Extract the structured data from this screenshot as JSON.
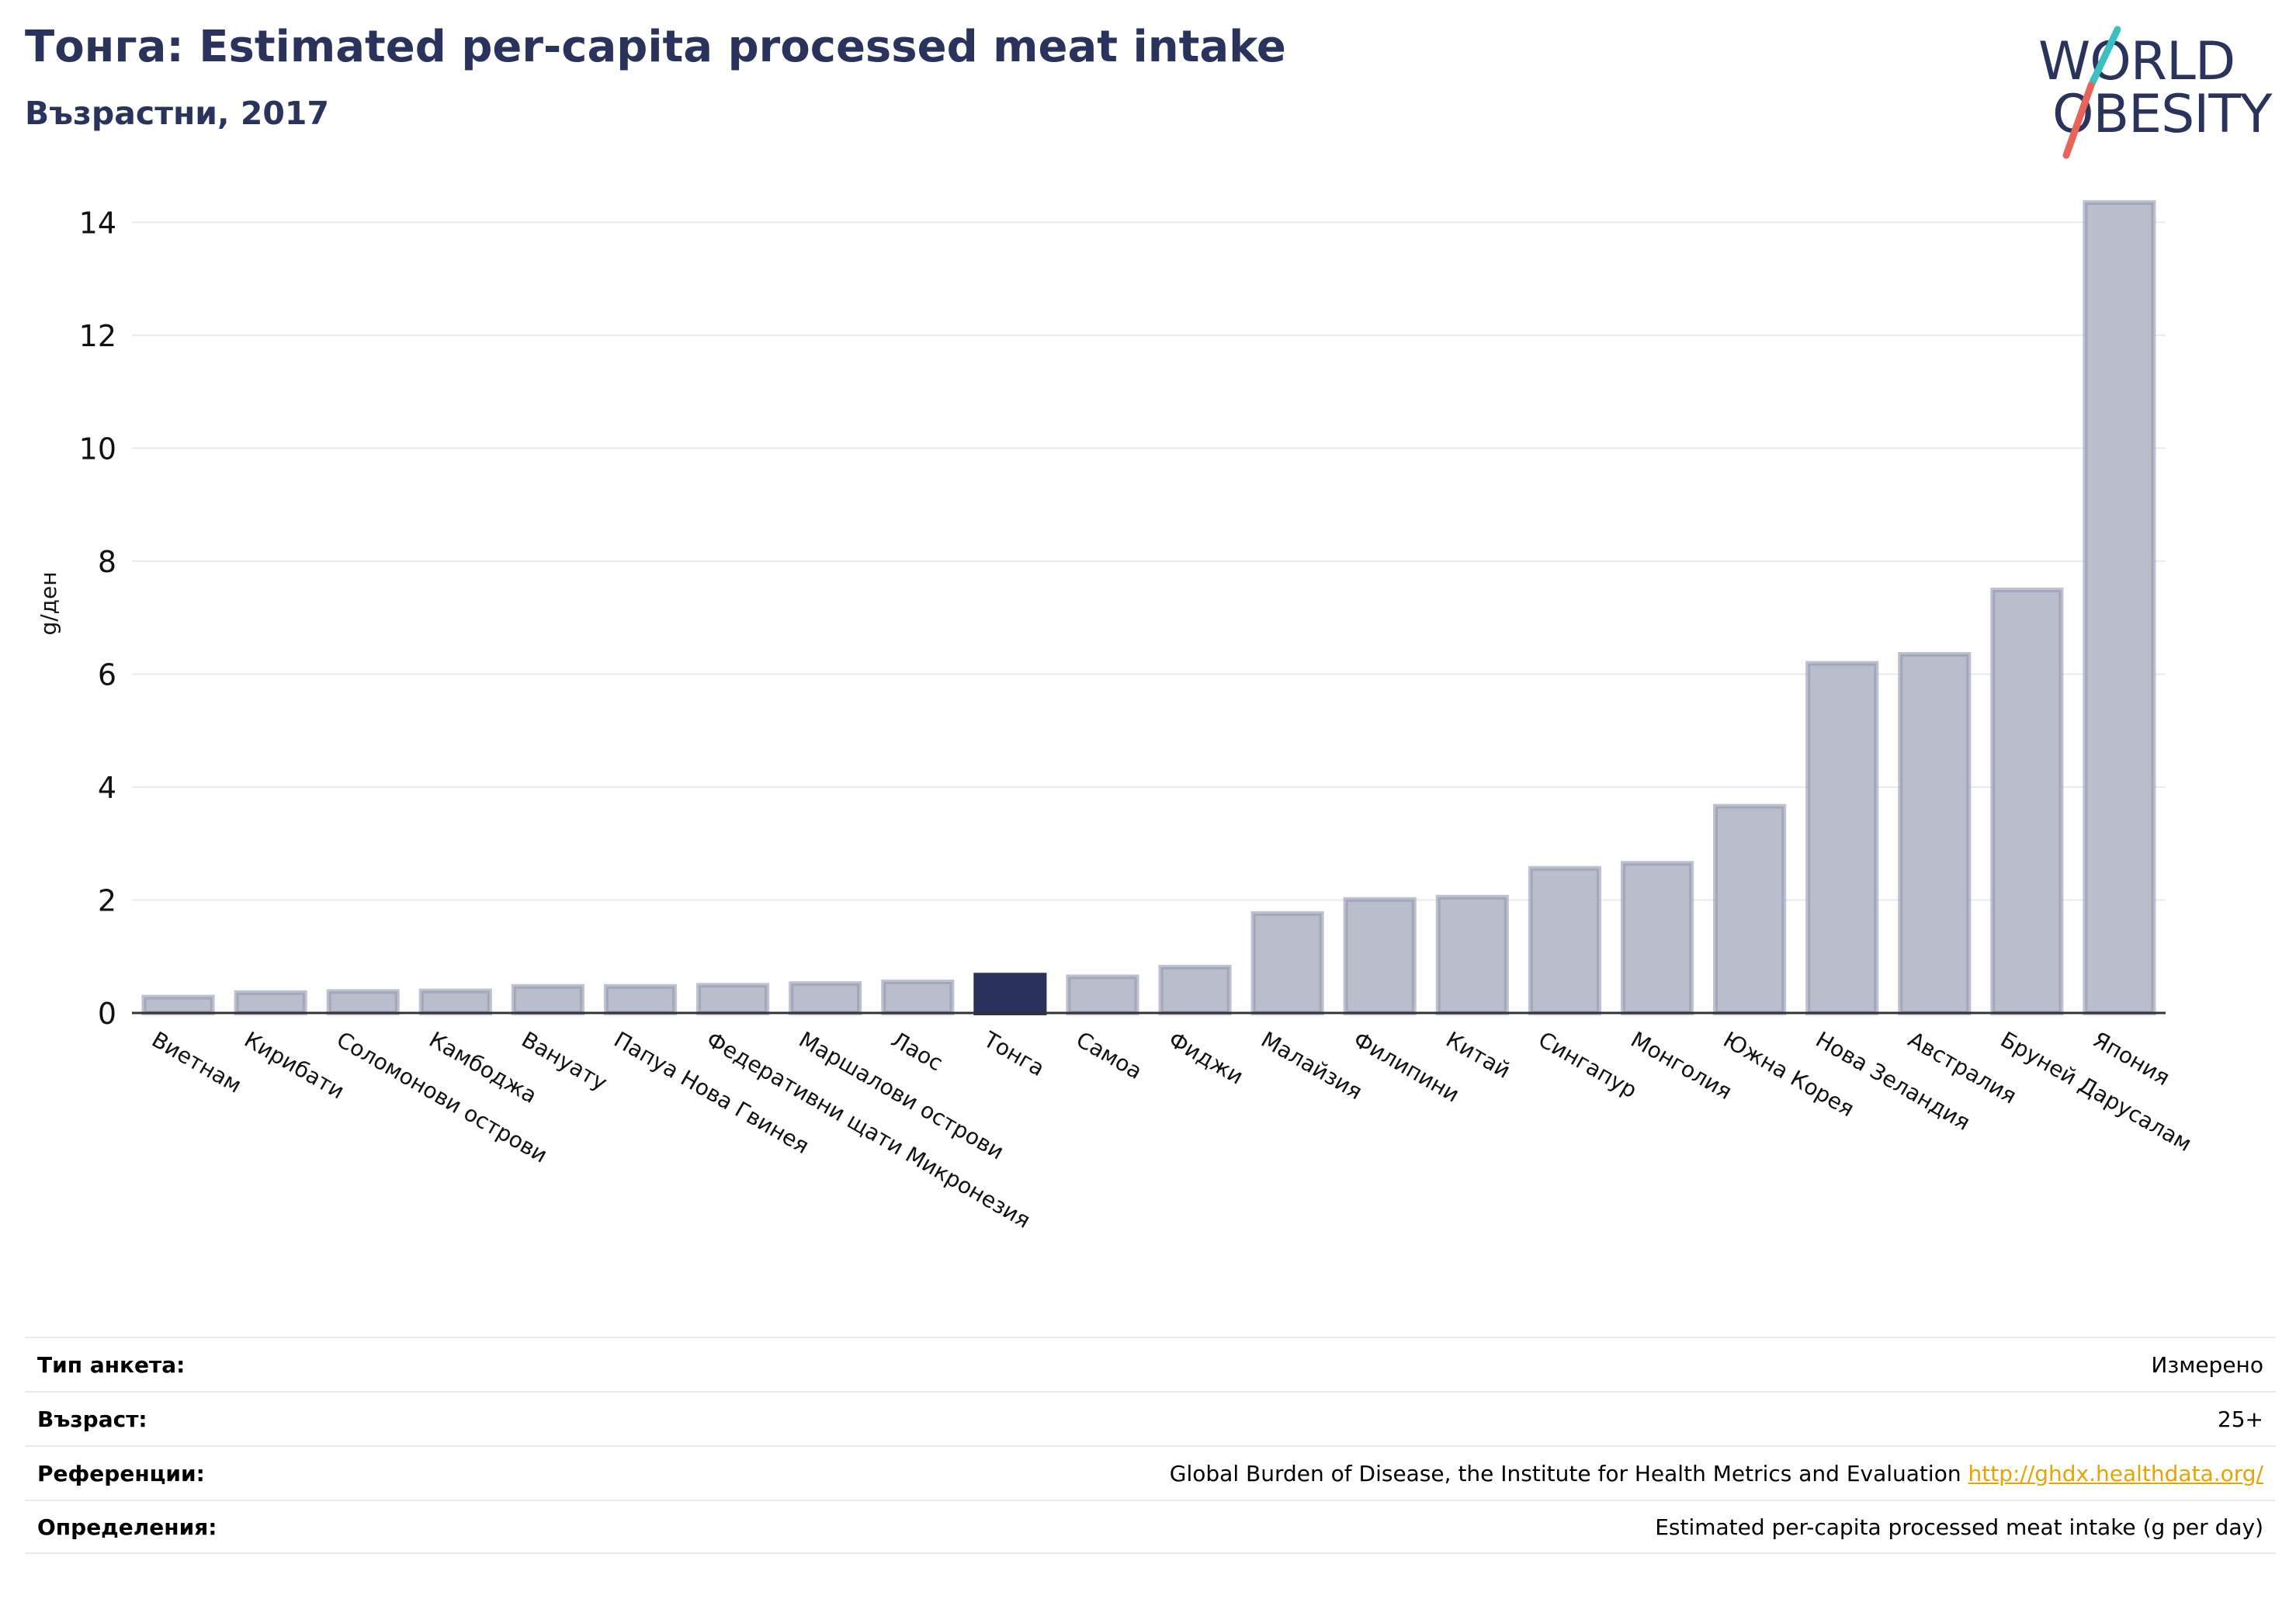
{
  "header": {
    "title": "Тонга: Estimated per-capita processed meat intake",
    "subtitle": "Възрастни, 2017"
  },
  "logo": {
    "line1": "WORLD",
    "line2": "OBESITY",
    "colors": {
      "text": "#29335c",
      "slash_top": "#3cbfbf",
      "slash_bottom": "#e8645a"
    }
  },
  "chart_data": {
    "type": "bar",
    "ylabel": "g/ден",
    "ylim": [
      0,
      14.5
    ],
    "yticks": [
      0,
      2,
      4,
      6,
      8,
      10,
      12,
      14
    ],
    "grid": true,
    "highlight": "Тонга",
    "colors": {
      "bar": "#babdcc",
      "bar_edge": "#9297b0",
      "highlight": "#29335c",
      "grid": "#e6ebf0",
      "axis": "#333333"
    },
    "categories": [
      "Виетнам",
      "Кирибати",
      "Соломонови острови",
      "Камбоджа",
      "Вануату",
      "Папуа Нова Гвинея",
      "Федеративни щати Микронезия",
      "Маршалови острови",
      "Лаос",
      "Тонга",
      "Самоа",
      "Фиджи",
      "Малайзия",
      "Филипини",
      "Китай",
      "Сингапур",
      "Монголия",
      "Южна Корея",
      "Нова Зеландия",
      "Австралия",
      "Бруней Дарусалам",
      "Япония"
    ],
    "values": [
      0.28,
      0.36,
      0.38,
      0.39,
      0.47,
      0.47,
      0.49,
      0.52,
      0.55,
      0.67,
      0.64,
      0.81,
      1.76,
      2.01,
      2.05,
      2.56,
      2.65,
      3.66,
      6.19,
      6.35,
      7.49,
      14.35
    ]
  },
  "footer": {
    "rows": [
      {
        "label": "Тип анкета:",
        "value": "Измерено"
      },
      {
        "label": "Възраст:",
        "value": "25+"
      },
      {
        "label": "Референции:",
        "value": "Global Burden of Disease, the Institute for Health Metrics and Evaluation",
        "link": "http://ghdx.healthdata.org/"
      },
      {
        "label": "Определения:",
        "value": "Estimated per-capita processed meat intake (g per day)"
      }
    ]
  }
}
